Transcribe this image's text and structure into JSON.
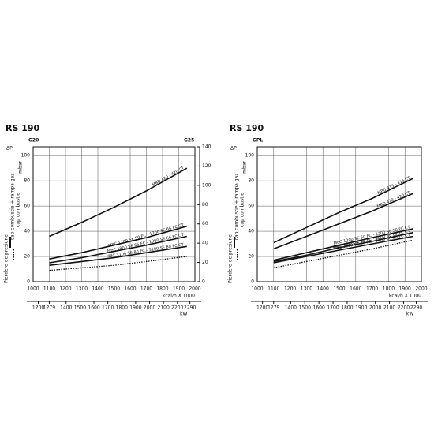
{
  "chart_data": [
    {
      "type": "line",
      "title": "RS 190",
      "fuel_label": "G20",
      "y2_fuel_label": "G25",
      "delta_label": "ΔP",
      "ylabel": "mbar",
      "side_label": "Pierdere de presiune",
      "legend": [
        {
          "label": "cap combustie + rampa gaz",
          "style": "solid"
        },
        {
          "label": "cap combustie",
          "style": "dotted"
        }
      ],
      "x": [
        1100,
        1300,
        1500,
        1700,
        1950
      ],
      "xlim": [
        1000,
        2000
      ],
      "xticks": [
        1000,
        1100,
        1200,
        1300,
        1400,
        1500,
        1600,
        1700,
        1800,
        1900,
        2000
      ],
      "xlabel": "kcal/h X 1000",
      "x2lim": [
        1163,
        2326
      ],
      "x2ticks": [
        1200,
        1279,
        1400,
        1500,
        1600,
        1700,
        1800,
        1900,
        2000,
        2100,
        2200,
        2290
      ],
      "x2label": "kW",
      "ylim": [
        0,
        107
      ],
      "yticks": [
        0,
        20,
        40,
        60,
        80,
        100
      ],
      "y2lim": [
        0,
        140
      ],
      "y2ticks": [
        0,
        20,
        40,
        60,
        80,
        100,
        120,
        140
      ],
      "grid": true,
      "series": [
        {
          "name": "MBD 420 - 420 CT",
          "style": "solid",
          "color": "#111111",
          "values": [
            36,
            47,
            59,
            72,
            90
          ]
        },
        {
          "name": "MBC 1200 SE 50 FC - 1200 SE 66 FC CT",
          "style": "solid",
          "color": "#111111",
          "values": [
            18,
            23,
            29,
            35,
            44
          ]
        },
        {
          "name": "MBC 1900 SE 65 FC - 1900 SE 66 FC CT",
          "style": "solid",
          "color": "#111111",
          "values": [
            15,
            19,
            24,
            29,
            36
          ]
        },
        {
          "name": "MBC 3100 SE 80 FC - 3100 SE 80 FC CT",
          "style": "solid",
          "color": "#111111",
          "values": [
            13,
            16,
            19,
            23,
            28
          ]
        },
        {
          "style": "dotted",
          "color": "#111111",
          "values": [
            9,
            11,
            13,
            16,
            20
          ]
        }
      ]
    },
    {
      "type": "line",
      "title": "RS 190",
      "fuel_label": "GPL",
      "delta_label": "ΔP",
      "ylabel": "mbar",
      "side_label": "Pierdere de presiune",
      "legend": [
        {
          "label": "cap combustie + rampa gaz",
          "style": "solid"
        },
        {
          "label": "cap combustie",
          "style": "dotted"
        }
      ],
      "x": [
        1100,
        1300,
        1500,
        1700,
        1950
      ],
      "xlim": [
        1000,
        2000
      ],
      "xticks": [
        1000,
        1100,
        1200,
        1300,
        1400,
        1500,
        1600,
        1700,
        1800,
        1900,
        2000
      ],
      "xlabel": "kcal/h X 1000",
      "x2lim": [
        1163,
        2326
      ],
      "x2ticks": [
        1200,
        1279,
        1400,
        1500,
        1600,
        1700,
        1800,
        1900,
        2000,
        2100,
        2200,
        2290
      ],
      "x2label": "kW",
      "ylim": [
        0,
        107
      ],
      "yticks": [
        0,
        20,
        40,
        60,
        80,
        100
      ],
      "grid": true,
      "series": [
        {
          "name": "MBD 415 - 415 CT",
          "style": "solid",
          "color": "#111111",
          "values": [
            31,
            43,
            55,
            66,
            82
          ]
        },
        {
          "name": "MBD 420 - 420 CT",
          "style": "solid",
          "color": "#111111",
          "values": [
            26,
            36,
            46,
            56,
            70
          ]
        },
        {
          "name": "MBC 1200 SE 50 FC - 1200 SE 50 FC CT",
          "style": "solid",
          "color": "#111111",
          "values": [
            17,
            23,
            29,
            35,
            42
          ]
        },
        {
          "name": "MBC 1900 SE 65 FC - 1900 SE 65 FC CT",
          "style": "solid",
          "color": "#111111",
          "values": [
            16,
            21,
            27,
            32,
            39
          ]
        },
        {
          "name": "MBC 3100 SE 80 FC - 3100 SE 80 FC CT",
          "style": "solid",
          "color": "#111111",
          "values": [
            15,
            20,
            25,
            30,
            36
          ]
        },
        {
          "style": "dotted",
          "color": "#111111",
          "values": [
            11,
            16,
            21,
            26,
            33
          ]
        }
      ]
    }
  ]
}
